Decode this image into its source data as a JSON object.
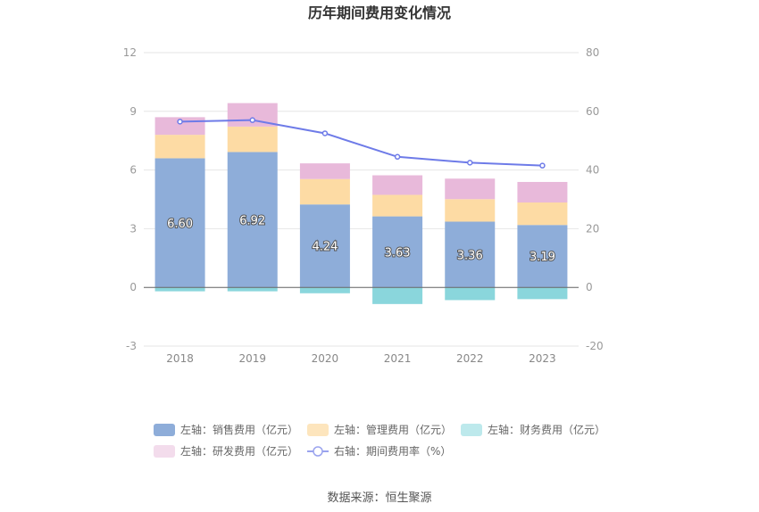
{
  "chart_data": {
    "type": "bar",
    "title": "历年期间费用变化情况",
    "categories": [
      "2018",
      "2019",
      "2020",
      "2021",
      "2022",
      "2023"
    ],
    "left_axis": {
      "ylim": [
        -3,
        12
      ],
      "ticks": [
        "12",
        "9",
        "6",
        "3",
        "0",
        "-3"
      ],
      "tick_values": [
        12,
        9,
        6,
        3,
        0,
        -3
      ]
    },
    "right_axis": {
      "ylim": [
        -20,
        80
      ],
      "ticks": [
        "80",
        "60",
        "40",
        "20",
        "0",
        "-20"
      ],
      "tick_values": [
        80,
        60,
        40,
        20,
        0,
        -20
      ]
    },
    "series": [
      {
        "name": "左轴：销售费用（亿元）",
        "kind": "bar",
        "color": "#8eadd9",
        "values": [
          6.6,
          6.92,
          4.24,
          3.63,
          3.36,
          3.19
        ],
        "labels": [
          "6.60",
          "6.92",
          "4.24",
          "3.63",
          "3.36",
          "3.19"
        ]
      },
      {
        "name": "左轴：管理费用（亿元）",
        "kind": "bar",
        "color": "#fddba4",
        "values": [
          1.2,
          1.3,
          1.3,
          1.1,
          1.15,
          1.15
        ]
      },
      {
        "name": "左轴：财务费用（亿元）",
        "kind": "bar",
        "color": "#8ad6dc",
        "values": [
          -0.2,
          -0.2,
          -0.3,
          -0.85,
          -0.65,
          -0.6
        ]
      },
      {
        "name": "左轴：研发费用（亿元）",
        "kind": "bar",
        "color": "#e8b9da",
        "values": [
          0.9,
          1.2,
          0.8,
          1.0,
          1.05,
          1.05
        ]
      },
      {
        "name": "右轴：期间费用率（%）",
        "kind": "line",
        "color": "#6e7be8",
        "values": [
          56.5,
          57.0,
          52.5,
          44.5,
          42.5,
          41.5
        ]
      }
    ],
    "legend_placement": "bottom",
    "grid": true
  },
  "legend": [
    {
      "label": "左轴：销售费用（亿元）",
      "color": "#8eadd9",
      "shape": "rect"
    },
    {
      "label": "左轴：管理费用（亿元）",
      "color": "#fde5bd",
      "shape": "rect"
    },
    {
      "label": "左轴：财务费用（亿元）",
      "color": "#bde9ec",
      "shape": "rect"
    },
    {
      "label": "左轴：研发费用（亿元）",
      "color": "#f3dcec",
      "shape": "rect"
    },
    {
      "label": "右轴：期间费用率（%）",
      "color": "#9aa3ee",
      "shape": "line"
    }
  ],
  "source": "数据来源：恒生聚源"
}
